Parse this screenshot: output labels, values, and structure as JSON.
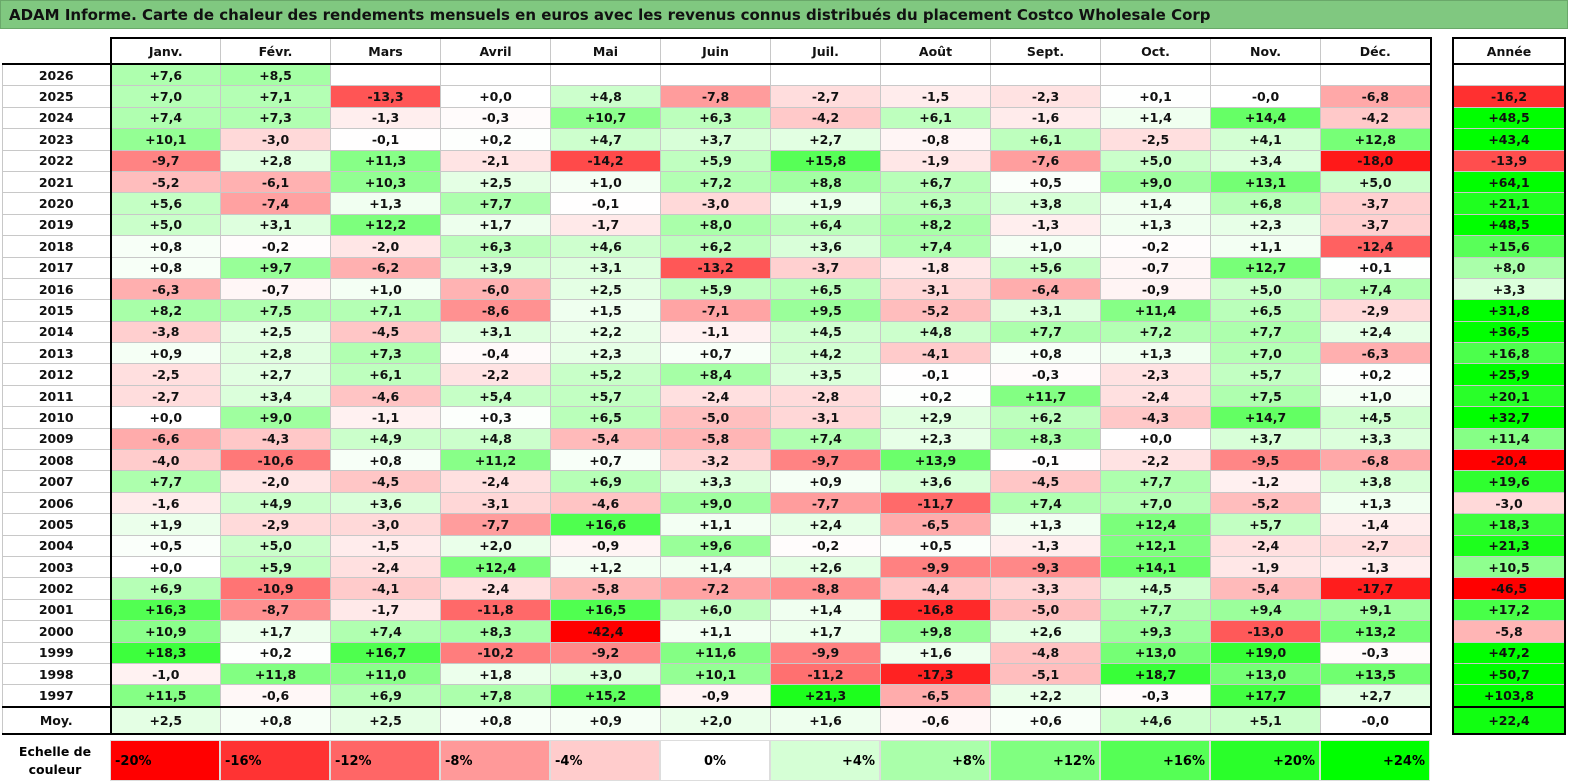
{
  "title": "ADAM Informe. Carte de chaleur des rendements mensuels en euros avec les revenus connus distribués du placement Costco Wholesale Corp",
  "chart_data": {
    "type": "heatmap",
    "title": "ADAM Informe. Carte de chaleur des rendements mensuels en euros avec les revenus connus distribués du placement Costco Wholesale Corp",
    "months": [
      "Janv.",
      "Févr.",
      "Mars",
      "Avril",
      "Mai",
      "Juin",
      "Juil.",
      "Août",
      "Sept.",
      "Oct.",
      "Nov.",
      "Déc."
    ],
    "year_header": "Année",
    "rows": [
      {
        "year": "2026",
        "values": [
          "+7,6",
          "+8,5",
          "",
          "",
          "",
          "",
          "",
          "",
          "",
          "",
          "",
          ""
        ],
        "total": ""
      },
      {
        "year": "2025",
        "values": [
          "+7,0",
          "+7,1",
          "-13,3",
          "+0,0",
          "+4,8",
          "-7,8",
          "-2,7",
          "-1,5",
          "-2,3",
          "+0,1",
          "-0,0",
          "-6,8"
        ],
        "total": "-16,2"
      },
      {
        "year": "2024",
        "values": [
          "+7,4",
          "+7,3",
          "-1,3",
          "-0,3",
          "+10,7",
          "+6,3",
          "-4,2",
          "+6,1",
          "-1,6",
          "+1,4",
          "+14,4",
          "-4,2"
        ],
        "total": "+48,5"
      },
      {
        "year": "2023",
        "values": [
          "+10,1",
          "-3,0",
          "-0,1",
          "+0,2",
          "+4,7",
          "+3,7",
          "+2,7",
          "-0,8",
          "+6,1",
          "-2,5",
          "+4,1",
          "+12,8"
        ],
        "total": "+43,4"
      },
      {
        "year": "2022",
        "values": [
          "-9,7",
          "+2,8",
          "+11,3",
          "-2,1",
          "-14,2",
          "+5,9",
          "+15,8",
          "-1,9",
          "-7,6",
          "+5,0",
          "+3,4",
          "-18,0"
        ],
        "total": "-13,9"
      },
      {
        "year": "2021",
        "values": [
          "-5,2",
          "-6,1",
          "+10,3",
          "+2,5",
          "+1,0",
          "+7,2",
          "+8,8",
          "+6,7",
          "+0,5",
          "+9,0",
          "+13,1",
          "+5,0"
        ],
        "total": "+64,1"
      },
      {
        "year": "2020",
        "values": [
          "+5,6",
          "-7,4",
          "+1,3",
          "+7,7",
          "-0,1",
          "-3,0",
          "+1,9",
          "+6,3",
          "+3,8",
          "+1,4",
          "+6,8",
          "-3,7"
        ],
        "total": "+21,1"
      },
      {
        "year": "2019",
        "values": [
          "+5,0",
          "+3,1",
          "+12,2",
          "+1,7",
          "-1,7",
          "+8,0",
          "+6,4",
          "+8,2",
          "-1,3",
          "+1,3",
          "+2,3",
          "-3,7"
        ],
        "total": "+48,5"
      },
      {
        "year": "2018",
        "values": [
          "+0,8",
          "-0,2",
          "-2,0",
          "+6,3",
          "+4,6",
          "+6,2",
          "+3,6",
          "+7,4",
          "+1,0",
          "-0,2",
          "+1,1",
          "-12,4"
        ],
        "total": "+15,6"
      },
      {
        "year": "2017",
        "values": [
          "+0,8",
          "+9,7",
          "-6,2",
          "+3,9",
          "+3,1",
          "-13,2",
          "-3,7",
          "-1,8",
          "+5,6",
          "-0,7",
          "+12,7",
          "+0,1"
        ],
        "total": "+8,0"
      },
      {
        "year": "2016",
        "values": [
          "-6,3",
          "-0,7",
          "+1,0",
          "-6,0",
          "+2,5",
          "+5,9",
          "+6,5",
          "-3,1",
          "-6,4",
          "-0,9",
          "+5,0",
          "+7,4"
        ],
        "total": "+3,3"
      },
      {
        "year": "2015",
        "values": [
          "+8,2",
          "+7,5",
          "+7,1",
          "-8,6",
          "+1,5",
          "-7,1",
          "+9,5",
          "-5,2",
          "+3,1",
          "+11,4",
          "+6,5",
          "-2,9"
        ],
        "total": "+31,8"
      },
      {
        "year": "2014",
        "values": [
          "-3,8",
          "+2,5",
          "-4,5",
          "+3,1",
          "+2,2",
          "-1,1",
          "+4,5",
          "+4,8",
          "+7,7",
          "+7,2",
          "+7,7",
          "+2,4"
        ],
        "total": "+36,5"
      },
      {
        "year": "2013",
        "values": [
          "+0,9",
          "+2,8",
          "+7,3",
          "-0,4",
          "+2,3",
          "+0,7",
          "+4,2",
          "-4,1",
          "+0,8",
          "+1,3",
          "+7,0",
          "-6,3"
        ],
        "total": "+16,8"
      },
      {
        "year": "2012",
        "values": [
          "-2,5",
          "+2,7",
          "+6,1",
          "-2,2",
          "+5,2",
          "+8,4",
          "+3,5",
          "-0,1",
          "-0,3",
          "-2,3",
          "+5,7",
          "+0,2"
        ],
        "total": "+25,9"
      },
      {
        "year": "2011",
        "values": [
          "-2,7",
          "+3,4",
          "-4,6",
          "+5,4",
          "+5,7",
          "-2,4",
          "-2,8",
          "+0,2",
          "+11,7",
          "-2,4",
          "+7,5",
          "+1,0"
        ],
        "total": "+20,1"
      },
      {
        "year": "2010",
        "values": [
          "+0,0",
          "+9,0",
          "-1,1",
          "+0,3",
          "+6,5",
          "-5,0",
          "-3,1",
          "+2,9",
          "+6,2",
          "-4,3",
          "+14,7",
          "+4,5"
        ],
        "total": "+32,7"
      },
      {
        "year": "2009",
        "values": [
          "-6,6",
          "-4,3",
          "+4,9",
          "+4,8",
          "-5,4",
          "-5,8",
          "+7,4",
          "+2,3",
          "+8,3",
          "+0,0",
          "+3,7",
          "+3,3"
        ],
        "total": "+11,4"
      },
      {
        "year": "2008",
        "values": [
          "-4,0",
          "-10,6",
          "+0,8",
          "+11,2",
          "+0,7",
          "-3,2",
          "-9,7",
          "+13,9",
          "-0,1",
          "-2,2",
          "-9,5",
          "-6,8"
        ],
        "total": "-20,4"
      },
      {
        "year": "2007",
        "values": [
          "+7,7",
          "-2,0",
          "-4,5",
          "-2,4",
          "+6,9",
          "+3,3",
          "+0,9",
          "+3,6",
          "-4,5",
          "+7,7",
          "-1,2",
          "+3,8"
        ],
        "total": "+19,6"
      },
      {
        "year": "2006",
        "values": [
          "-1,6",
          "+4,9",
          "+3,6",
          "-3,1",
          "-4,6",
          "+9,0",
          "-7,7",
          "-11,7",
          "+7,4",
          "+7,0",
          "-5,2",
          "+1,3"
        ],
        "total": "-3,0"
      },
      {
        "year": "2005",
        "values": [
          "+1,9",
          "-2,9",
          "-3,0",
          "-7,7",
          "+16,6",
          "+1,1",
          "+2,4",
          "-6,5",
          "+1,3",
          "+12,4",
          "+5,7",
          "-1,4"
        ],
        "total": "+18,3"
      },
      {
        "year": "2004",
        "values": [
          "+0,5",
          "+5,0",
          "-1,5",
          "+2,0",
          "-0,9",
          "+9,6",
          "-0,2",
          "+0,5",
          "-1,3",
          "+12,1",
          "-2,4",
          "-2,7"
        ],
        "total": "+21,3"
      },
      {
        "year": "2003",
        "values": [
          "+0,0",
          "+5,9",
          "-2,4",
          "+12,4",
          "+1,2",
          "+1,4",
          "+2,6",
          "-9,9",
          "-9,3",
          "+14,1",
          "-1,9",
          "-1,3"
        ],
        "total": "+10,5"
      },
      {
        "year": "2002",
        "values": [
          "+6,9",
          "-10,9",
          "-4,1",
          "-2,4",
          "-5,8",
          "-7,2",
          "-8,8",
          "-4,4",
          "-3,3",
          "+4,5",
          "-5,4",
          "-17,7"
        ],
        "total": "-46,5"
      },
      {
        "year": "2001",
        "values": [
          "+16,3",
          "-8,7",
          "-1,7",
          "-11,8",
          "+16,5",
          "+6,0",
          "+1,4",
          "-16,8",
          "-5,0",
          "+7,7",
          "+9,4",
          "+9,1"
        ],
        "total": "+17,2"
      },
      {
        "year": "2000",
        "values": [
          "+10,9",
          "+1,7",
          "+7,4",
          "+8,3",
          "-42,4",
          "+1,1",
          "+1,7",
          "+9,8",
          "+2,6",
          "+9,3",
          "-13,0",
          "+13,2"
        ],
        "total": "-5,8"
      },
      {
        "year": "1999",
        "values": [
          "+18,3",
          "+0,2",
          "+16,7",
          "-10,2",
          "-9,2",
          "+11,6",
          "-9,9",
          "+1,6",
          "-4,8",
          "+13,0",
          "+19,0",
          "-0,3"
        ],
        "total": "+47,2"
      },
      {
        "year": "1998",
        "values": [
          "-1,0",
          "+11,8",
          "+11,0",
          "+1,8",
          "+3,0",
          "+10,1",
          "-11,2",
          "-17,3",
          "-5,1",
          "+18,7",
          "+13,0",
          "+13,5"
        ],
        "total": "+50,7"
      },
      {
        "year": "1997",
        "values": [
          "+11,5",
          "-0,6",
          "+6,9",
          "+7,8",
          "+15,2",
          "-0,9",
          "+21,3",
          "-6,5",
          "+2,2",
          "-0,3",
          "+17,7",
          "+2,7"
        ],
        "total": "+103,8"
      }
    ],
    "average": {
      "label": "Moy.",
      "values": [
        "+2,5",
        "+0,8",
        "+2,5",
        "+0,8",
        "+0,9",
        "+2,0",
        "+1,6",
        "-0,6",
        "+0,6",
        "+4,6",
        "+5,1",
        "-0,0"
      ],
      "total": "+22,4"
    },
    "scale": {
      "label": "Echelle de couleur",
      "steps": [
        "-20%",
        "-16%",
        "-12%",
        "-8%",
        "-4%",
        "0%",
        "+4%",
        "+8%",
        "+12%",
        "+16%",
        "+20%",
        "+24%"
      ],
      "min": -20,
      "max": 24,
      "negative_color": "#ff0000",
      "positive_color": "#00ff00",
      "neutral_color": "#ffffff"
    }
  }
}
